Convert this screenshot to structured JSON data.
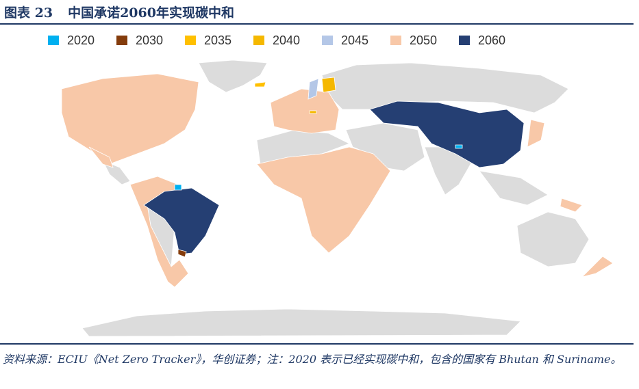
{
  "header": {
    "label": "图表 23",
    "title": "中国承诺2060年实现碳中和"
  },
  "legend": [
    {
      "name": "2020",
      "color": "#00b0f0"
    },
    {
      "name": "2030",
      "color": "#843c0c"
    },
    {
      "name": "2035",
      "color": "#ffc000"
    },
    {
      "name": "2040",
      "color": "#f5b800"
    },
    {
      "name": "2045",
      "color": "#b4c7e7"
    },
    {
      "name": "2050",
      "color": "#f8c8a8"
    },
    {
      "name": "2060",
      "color": "#253f73"
    }
  ],
  "source": "资料来源：ECIU《Net Zero Tracker》，华创证券；注：2020 表示已经实现碳中和，包含的国家有 Bhutan 和 Suriname。"
}
